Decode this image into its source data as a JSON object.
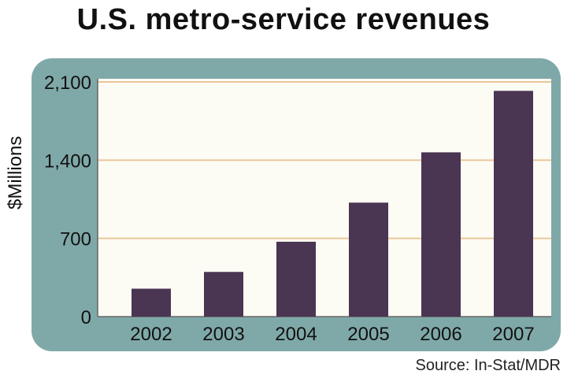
{
  "chart_data": {
    "type": "bar",
    "title": "U.S. metro-service revenues",
    "xlabel": "",
    "ylabel": "$Millions",
    "categories": [
      "2002",
      "2003",
      "2004",
      "2005",
      "2006",
      "2007"
    ],
    "values": [
      250,
      400,
      670,
      1020,
      1470,
      2020
    ],
    "yticks": [
      0,
      700,
      1400,
      2100
    ],
    "ytick_labels": [
      "0",
      "700",
      "1,400",
      "2,100"
    ],
    "ylim": [
      0,
      2100
    ],
    "grid": true,
    "source": "Source: In-Stat/MDR",
    "colors": {
      "bar": "#4a3553",
      "frame": "#7fa9a8",
      "plot_bg": "#fdfcf4",
      "grid": "#e8c79a",
      "axis": "#666666"
    }
  }
}
